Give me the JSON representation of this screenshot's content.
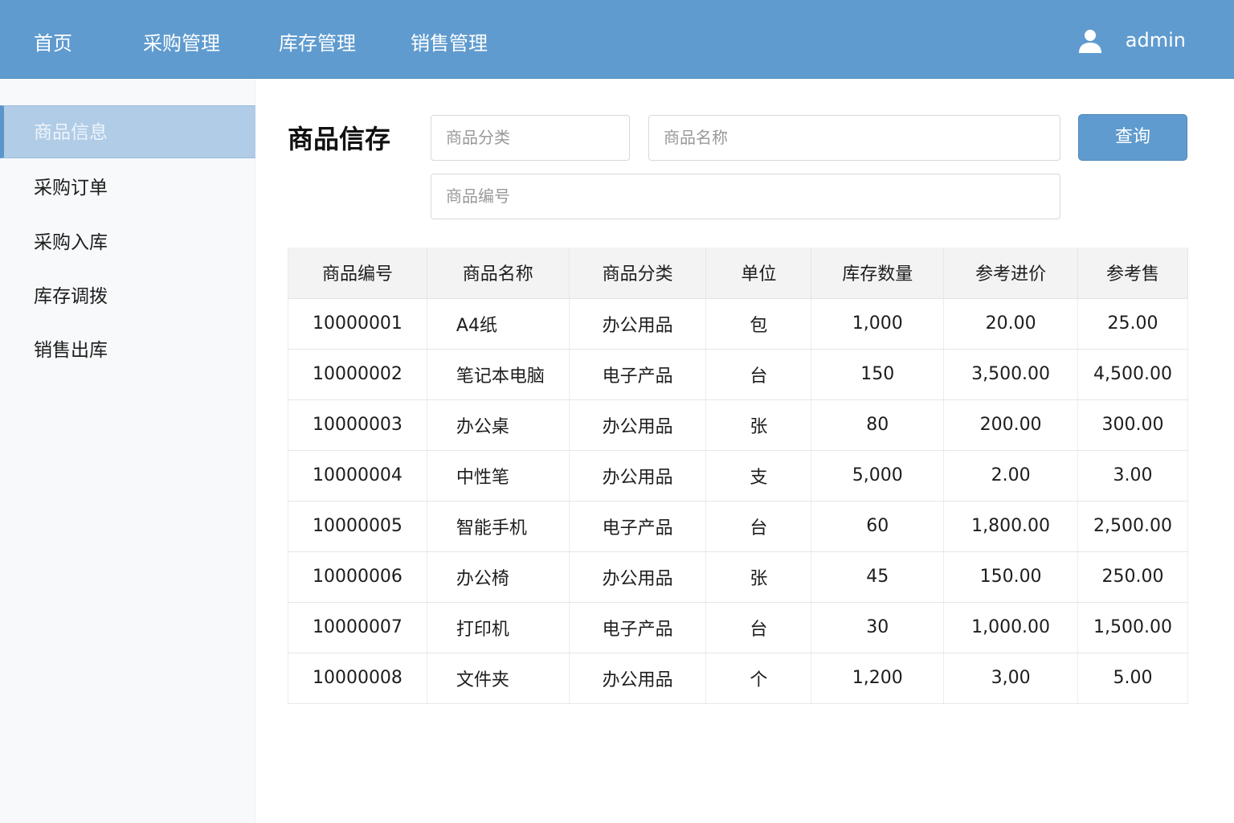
{
  "nav": {
    "items": [
      "首页",
      "采购管理",
      "库存管理",
      "销售管理"
    ],
    "user": "admin",
    "user_icon": "user-icon"
  },
  "sidebar": {
    "items": [
      "商品信息",
      "采购订单",
      "采购入库",
      "库存调拨",
      "销售出库"
    ],
    "active": 0
  },
  "main": {
    "title": "商品信存",
    "filters": {
      "category_placeholder": "商品分类",
      "name_placeholder": "商品名称",
      "code_placeholder": "商品编号",
      "search_label": "查询"
    },
    "table": {
      "columns": [
        "商品编号",
        "商品名称",
        "商品分类",
        "单位",
        "库存数量",
        "参考进价",
        "参考售"
      ],
      "rows": [
        [
          "10000001",
          "A4纸",
          "办公用品",
          "包",
          "1,000",
          "20.00",
          "25.00"
        ],
        [
          "10000002",
          "笔记本电脑",
          "电子产品",
          "台",
          "150",
          "3,500.00",
          "4,500.00"
        ],
        [
          "10000003",
          "办公桌",
          "办公用品",
          "张",
          "80",
          "200.00",
          "300.00"
        ],
        [
          "10000004",
          "中性笔",
          "办公用品",
          "支",
          "5,000",
          "2.00",
          "3.00"
        ],
        [
          "10000005",
          "智能手机",
          "电子产品",
          "台",
          "60",
          "1,800.00",
          "2,500.00"
        ],
        [
          "10000006",
          "办公椅",
          "办公用品",
          "张",
          "45",
          "150.00",
          "250.00"
        ],
        [
          "10000007",
          "打印机",
          "电子产品",
          "台",
          "30",
          "1,000.00",
          "1,500.00"
        ],
        [
          "10000008",
          "文件夹",
          "办公用品",
          "个",
          "1,200",
          "3,00",
          "5.00"
        ]
      ]
    }
  },
  "colors": {
    "header": "#5f9bcf",
    "active": "#b0cce6"
  }
}
